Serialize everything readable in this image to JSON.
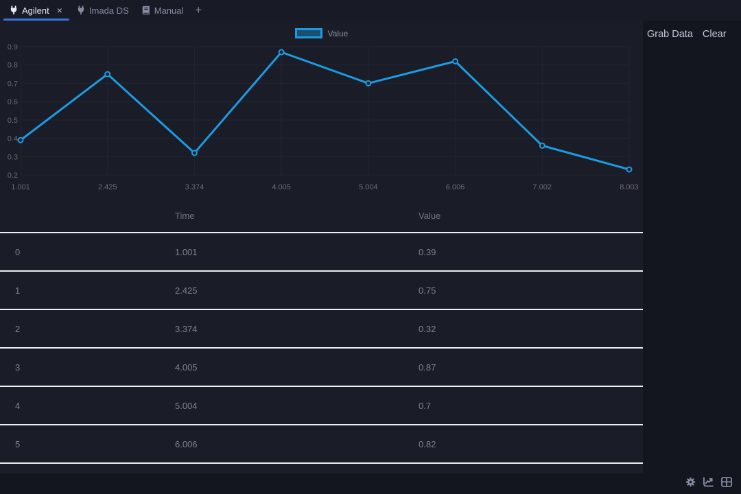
{
  "tabbar": {
    "tabs": [
      {
        "label": "Agilent",
        "icon": "plug-icon",
        "active": true,
        "closable": true
      },
      {
        "label": "Imada DS",
        "icon": "plug-icon",
        "active": false,
        "closable": false
      },
      {
        "label": "Manual",
        "icon": "book-icon",
        "active": false,
        "closable": false
      }
    ],
    "close_label": "×",
    "add_label": "+"
  },
  "actions": {
    "grab_data_label": "Grab Data",
    "clear_label": "Clear"
  },
  "chart_data": {
    "type": "line",
    "title": "",
    "legend_position": "top",
    "grid": true,
    "x": [
      1.001,
      2.425,
      3.374,
      4.005,
      5.004,
      6.006,
      7.002,
      8.003
    ],
    "x_labels": [
      "1.001",
      "2.425",
      "3.374",
      "4.005",
      "5.004",
      "6.006",
      "7.002",
      "8.003"
    ],
    "series": [
      {
        "name": "Value",
        "values": [
          0.39,
          0.75,
          0.32,
          0.87,
          0.7,
          0.82,
          0.36,
          0.23
        ]
      }
    ],
    "ylim": [
      0.2,
      0.9
    ],
    "yticks": [
      0.9,
      0.8,
      0.7,
      0.6,
      0.5,
      0.4,
      0.3,
      0.2
    ],
    "xlabel": "",
    "ylabel": "",
    "line_color": "#1d9be2"
  },
  "table": {
    "columns": [
      "",
      "Time",
      "Value"
    ],
    "rows": [
      [
        "0",
        "1.001",
        "0.39"
      ],
      [
        "1",
        "2.425",
        "0.75"
      ],
      [
        "2",
        "3.374",
        "0.32"
      ],
      [
        "3",
        "4.005",
        "0.87"
      ],
      [
        "4",
        "5.004",
        "0.7"
      ],
      [
        "5",
        "6.006",
        "0.82"
      ]
    ]
  },
  "statusbar": {
    "icons": [
      "settings-icon",
      "line-chart-icon",
      "table-icon"
    ]
  },
  "colors": {
    "accent_blue": "#3a74dd",
    "chart_line": "#1d9be2",
    "separator": "#edeff3",
    "panel_bg": "#1a1d27",
    "window_bg": "#13161e"
  }
}
